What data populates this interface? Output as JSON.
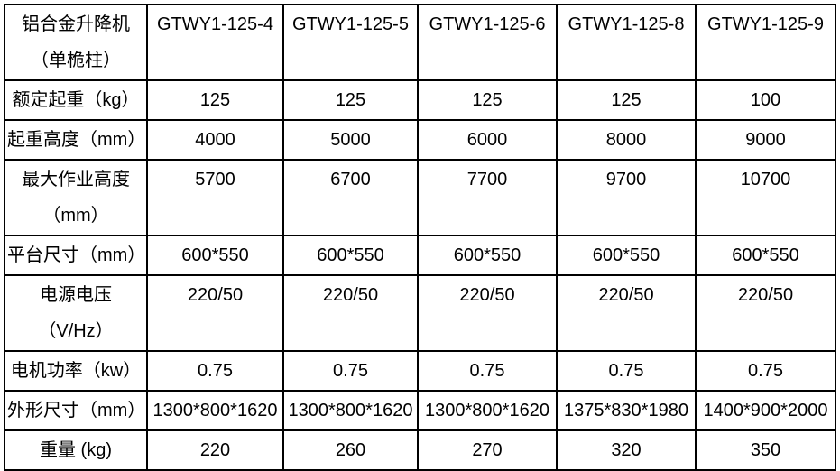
{
  "page": {
    "background_color": "#ffffff",
    "border_color": "#000000",
    "text_color": "#000000"
  },
  "table": {
    "corner_label": "铝合金升降机\n（单桅柱）",
    "models": [
      "GTWY1-125-4",
      "GTWY1-125-5",
      "GTWY1-125-6",
      "GTWY1-125-8",
      "GTWY1-125-9"
    ],
    "rows": [
      {
        "label": "额定起重（kg）",
        "values": [
          "125",
          "125",
          "125",
          "125",
          "100"
        ]
      },
      {
        "label": "起重高度（mm）",
        "values": [
          "4000",
          "5000",
          "6000",
          "8000",
          "9000"
        ]
      },
      {
        "label": "最大作业高度\n（mm）",
        "values": [
          "5700",
          "6700",
          "7700",
          "9700",
          "10700"
        ]
      },
      {
        "label": "平台尺寸（mm）",
        "values": [
          "600*550",
          "600*550",
          "600*550",
          "600*550",
          "600*550"
        ]
      },
      {
        "label": "电源电压（V/Hz）",
        "values": [
          "220/50",
          "220/50",
          "220/50",
          "220/50",
          "220/50"
        ]
      },
      {
        "label": "电机功率（kw）",
        "values": [
          "0.75",
          "0.75",
          "0.75",
          "0.75",
          "0.75"
        ]
      },
      {
        "label": "外形尺寸（mm）",
        "values": [
          "1300*800*1620",
          "1300*800*1620",
          "1300*800*1620",
          "1375*830*1980",
          "1400*900*2000"
        ]
      },
      {
        "label": "重量 (kg)",
        "values": [
          "220",
          "260",
          "270",
          "320",
          "350"
        ]
      }
    ]
  }
}
